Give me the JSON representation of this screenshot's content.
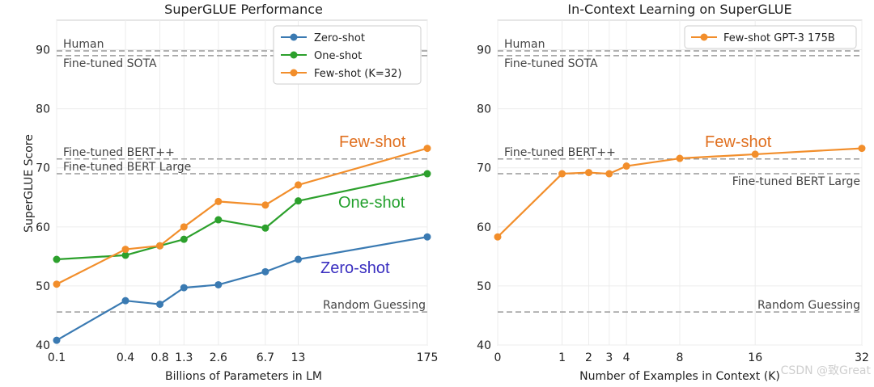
{
  "chart_data": [
    {
      "type": "line",
      "title": "SuperGLUE Performance",
      "xlabel": "Billions of Parameters in LM",
      "ylabel": "SuperGLUE Score",
      "ylim": [
        40,
        95
      ],
      "yticks": [
        40,
        50,
        60,
        70,
        80,
        90
      ],
      "categories": [
        "0.1",
        "0.4",
        "0.8",
        "1.3",
        "2.6",
        "6.7",
        "13",
        "175"
      ],
      "x": [
        0.1,
        0.4,
        0.8,
        1.3,
        2.6,
        6.7,
        13,
        175
      ],
      "x_scale": "log",
      "series": [
        {
          "name": "Zero-shot",
          "color": "#3a7ab2",
          "values": [
            40.8,
            47.5,
            46.9,
            49.7,
            50.2,
            52.4,
            54.5,
            58.3
          ]
        },
        {
          "name": "One-shot",
          "color": "#2ca02c",
          "values": [
            54.5,
            55.2,
            56.8,
            57.9,
            61.2,
            59.8,
            64.4,
            69.0
          ]
        },
        {
          "name": "Few-shot (K=32)",
          "color": "#f28e2b",
          "values": [
            50.3,
            56.2,
            56.8,
            60.0,
            64.3,
            63.7,
            67.1,
            73.3
          ]
        }
      ],
      "reference_lines": [
        {
          "label": "Human",
          "value": 89.8
        },
        {
          "label": "Fine-tuned SOTA",
          "value": 89.0
        },
        {
          "label": "Fine-tuned BERT++",
          "value": 71.5
        },
        {
          "label": "Fine-tuned BERT Large",
          "value": 69.0
        },
        {
          "label": "Random Guessing",
          "value": 45.6
        }
      ],
      "annotations": [
        {
          "text": "Few-shot",
          "color": "#e07020"
        },
        {
          "text": "One-shot",
          "color": "#22a02c"
        },
        {
          "text": "Zero-shot",
          "color": "#3a2fc0"
        }
      ],
      "legend_position": "top-right",
      "grid": true
    },
    {
      "type": "line",
      "title": "In-Context Learning on SuperGLUE",
      "xlabel": "Number of Examples in Context (K)",
      "ylabel": "",
      "ylim": [
        40,
        95
      ],
      "yticks": [
        40,
        50,
        60,
        70,
        80,
        90
      ],
      "x": [
        0,
        1,
        2,
        3,
        4,
        8,
        16,
        32
      ],
      "xlim": [
        0,
        32
      ],
      "x_scale": "sqrt",
      "series": [
        {
          "name": "Few-shot GPT-3 175B",
          "color": "#f28e2b",
          "values": [
            58.3,
            69.0,
            69.2,
            69.0,
            70.3,
            71.6,
            72.3,
            73.3
          ]
        }
      ],
      "reference_lines": [
        {
          "label": "Human",
          "value": 89.8
        },
        {
          "label": "Fine-tuned SOTA",
          "value": 89.0
        },
        {
          "label": "Fine-tuned BERT++",
          "value": 71.5
        },
        {
          "label": "Fine-tuned BERT Large",
          "value": 69.0
        },
        {
          "label": "Random Guessing",
          "value": 45.6
        }
      ],
      "annotations": [
        {
          "text": "Few-shot",
          "color": "#e07020"
        }
      ],
      "legend_position": "top-right",
      "grid": true
    }
  ],
  "watermark": "CSDN @致Great"
}
